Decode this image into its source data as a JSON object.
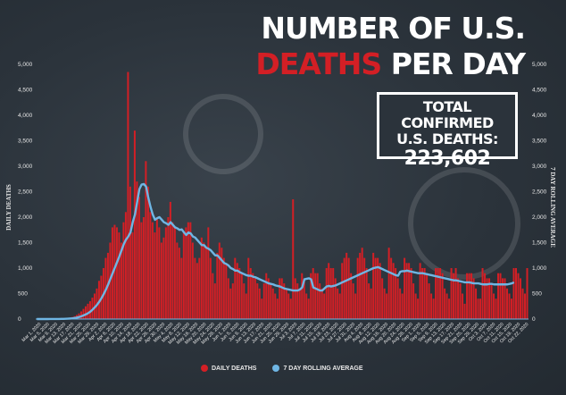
{
  "title": {
    "line1": "NUMBER OF U.S.",
    "line2_highlight": "DEATHS",
    "line2_rest": "PER DAY"
  },
  "total_box": {
    "line1": "TOTAL CONFIRMED",
    "line2": "U.S. DEATHS:",
    "value": "223,602"
  },
  "colors": {
    "bars": "#d31f25",
    "line": "#6fb6e4",
    "text": "#e8e8e8",
    "background": "#2b333b"
  },
  "chart_data": {
    "type": "bar",
    "ylabel": "DAILY DEATHS",
    "ylabel_right": "7 DAY ROLLING AVERAGE",
    "ylim": [
      0,
      5000
    ],
    "yticks": [
      "0",
      "500",
      "1,000",
      "1,500",
      "2,000",
      "2,500",
      "3,000",
      "3,500",
      "4,000",
      "4,500",
      "5,000"
    ],
    "ytick_values": [
      0,
      500,
      1000,
      1500,
      2000,
      2500,
      3000,
      3500,
      4000,
      4500,
      5000
    ],
    "xticks": [
      "Mar 1, 2020",
      "Mar 5, 2020",
      "Mar 9, 2020",
      "Mar 13, 2020",
      "Mar 17, 2020",
      "Mar 21, 2020",
      "Mar 25, 2020",
      "Mar 29, 2020",
      "Apr 2, 2020",
      "Apr 6, 2020",
      "Apr 10, 2020",
      "Apr 14, 2020",
      "Apr 18, 2020",
      "Apr 22, 2020",
      "Apr 26, 2020",
      "Apr 30, 2020",
      "May 4, 2020",
      "May 8, 2020",
      "May 12, 2020",
      "May 16, 2020",
      "May 20, 2020",
      "May 24, 2020",
      "May 28, 2020",
      "Jun 1, 2020",
      "Jun 5, 2020",
      "Jun 9, 2020",
      "Jun 13, 2020",
      "Jun 17, 2020",
      "Jun 21, 2020",
      "Jun 25, 2020",
      "Jun 29, 2020",
      "Jul 3, 2020",
      "Jul 7, 2020",
      "Jul 11, 2020",
      "Jul 15, 2020",
      "Jul 19, 2020",
      "Jul 23, 2020",
      "Jul 27, 2020",
      "Jul 31, 2020",
      "Aug 4, 2020",
      "Aug 8, 2020",
      "Aug 12, 2020",
      "Aug 16, 2020",
      "Aug 20, 2020",
      "Aug 24, 2020",
      "Aug 28, 2020",
      "Sep 1, 2020",
      "Sep 5, 2020",
      "Sep 9, 2020",
      "Sep 13, 2020",
      "Sep 17, 2020",
      "Sep 21, 2020",
      "Sep 25, 2020",
      "Sep 29, 2020",
      "Oct 3, 2020",
      "Oct 7, 2020",
      "Oct 11, 2020",
      "Oct 15, 2020",
      "Oct 19, 2020",
      "Oct 22, 2020"
    ],
    "series": [
      {
        "name": "DAILY DEATHS",
        "type": "bar",
        "color": "#d31f25",
        "values": [
          0,
          0,
          0,
          1,
          1,
          1,
          2,
          2,
          3,
          4,
          5,
          7,
          10,
          14,
          20,
          28,
          40,
          56,
          80,
          110,
          150,
          200,
          250,
          300,
          350,
          420,
          500,
          600,
          750,
          850,
          1000,
          1200,
          1300,
          1500,
          1800,
          1850,
          1800,
          1700,
          1500,
          1900,
          2100,
          4850,
          2600,
          1700,
          3700,
          2700,
          2400,
          1900,
          2000,
          3100,
          2600,
          2100,
          1900,
          1700,
          2000,
          1800,
          1500,
          1600,
          1800,
          2000,
          2300,
          1900,
          1800,
          1500,
          1400,
          1200,
          1700,
          1800,
          1900,
          1900,
          1500,
          1200,
          1100,
          1200,
          1600,
          1500,
          1400,
          1800,
          1200,
          900,
          700,
          1300,
          1500,
          1400,
          1200,
          1100,
          800,
          600,
          700,
          1200,
          1100,
          1000,
          900,
          700,
          500,
          1200,
          1000,
          900,
          800,
          700,
          600,
          400,
          700,
          900,
          800,
          700,
          600,
          500,
          400,
          800,
          800,
          700,
          600,
          500,
          400,
          2350,
          800,
          700,
          600,
          900,
          800,
          500,
          400,
          900,
          1000,
          900,
          900,
          700,
          600,
          500,
          1000,
          1100,
          1000,
          1000,
          800,
          600,
          500,
          1100,
          1200,
          1300,
          1200,
          900,
          700,
          500,
          1200,
          1300,
          1400,
          1200,
          1000,
          700,
          600,
          1300,
          1200,
          1200,
          1100,
          800,
          600,
          500,
          1400,
          1200,
          1100,
          1000,
          800,
          600,
          500,
          1200,
          1100,
          1100,
          1000,
          700,
          500,
          400,
          1100,
          1000,
          1000,
          900,
          700,
          500,
          400,
          1000,
          1000,
          1000,
          900,
          600,
          500,
          400,
          1000,
          900,
          1000,
          800,
          700,
          500,
          300,
          900,
          900,
          900,
          800,
          600,
          400,
          400,
          1000,
          900,
          800,
          800,
          700,
          500,
          400,
          900,
          900,
          800,
          800,
          600,
          500,
          400,
          1000,
          1000,
          900,
          800,
          600,
          500,
          1000
        ]
      },
      {
        "name": "7 DAY ROLLING AVERAGE",
        "type": "line",
        "color": "#6fb6e4",
        "values": [
          0,
          0,
          0,
          0,
          0,
          0,
          1,
          1,
          1,
          2,
          2,
          3,
          4,
          6,
          8,
          11,
          15,
          21,
          29,
          40,
          55,
          72,
          92,
          115,
          145,
          185,
          230,
          280,
          340,
          410,
          490,
          580,
          680,
          790,
          900,
          1010,
          1120,
          1230,
          1350,
          1470,
          1560,
          1620,
          1700,
          1900,
          2050,
          2300,
          2550,
          2640,
          2650,
          2600,
          2380,
          2200,
          2050,
          1950,
          1980,
          2000,
          1950,
          1900,
          1880,
          1850,
          1900,
          1850,
          1800,
          1780,
          1750,
          1760,
          1700,
          1650,
          1700,
          1680,
          1620,
          1600,
          1550,
          1500,
          1450,
          1450,
          1400,
          1380,
          1350,
          1300,
          1250,
          1250,
          1200,
          1150,
          1100,
          1080,
          1050,
          1000,
          980,
          950,
          950,
          920,
          900,
          880,
          860,
          850,
          850,
          830,
          820,
          800,
          780,
          760,
          740,
          720,
          700,
          690,
          680,
          660,
          650,
          640,
          620,
          600,
          590,
          580,
          570,
          560,
          560,
          560,
          580,
          620,
          780,
          790,
          800,
          780,
          620,
          600,
          580,
          560,
          560,
          600,
          640,
          650,
          640,
          650,
          660,
          680,
          700,
          720,
          740,
          760,
          780,
          800,
          820,
          840,
          860,
          880,
          900,
          920,
          940,
          960,
          980,
          1000,
          1010,
          1020,
          1000,
          980,
          960,
          940,
          920,
          900,
          880,
          860,
          850,
          930,
          940,
          940,
          950,
          940,
          930,
          920,
          910,
          900,
          900,
          900,
          890,
          880,
          870,
          860,
          850,
          840,
          830,
          820,
          810,
          800,
          790,
          780,
          770,
          760,
          760,
          750,
          740,
          730,
          720,
          720,
          720,
          710,
          700,
          700,
          700,
          690,
          680,
          680,
          680,
          690,
          690,
          680,
          680,
          680,
          680,
          680,
          680,
          680,
          690,
          700,
          720
        ]
      }
    ],
    "legend": "bottom-center",
    "grid": false
  }
}
